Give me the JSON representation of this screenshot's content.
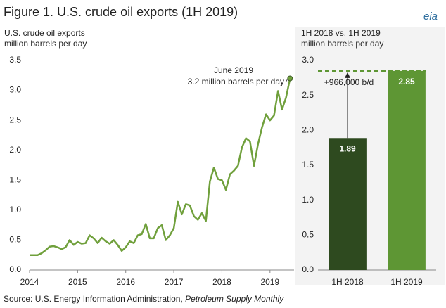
{
  "title": "Figure 1. U.S. crude oil exports (1H 2019)",
  "logo": "eia",
  "source": "Source: U.S. Energy Information Administration, ",
  "source_publication": "Petroleum Supply Monthly",
  "chart_data": [
    {
      "type": "line",
      "axis_label": [
        "U.S. crude oil exports",
        "million barrels per day"
      ],
      "annotation": [
        "June 2019",
        "3.2 million barrels per day"
      ],
      "x": [
        2014,
        2014.083,
        2014.167,
        2014.25,
        2014.333,
        2014.417,
        2014.5,
        2014.583,
        2014.667,
        2014.75,
        2014.833,
        2014.917,
        2015,
        2015.083,
        2015.167,
        2015.25,
        2015.333,
        2015.417,
        2015.5,
        2015.583,
        2015.667,
        2015.75,
        2015.833,
        2015.917,
        2016,
        2016.083,
        2016.167,
        2016.25,
        2016.333,
        2016.417,
        2016.5,
        2016.583,
        2016.667,
        2016.75,
        2016.833,
        2016.917,
        2017,
        2017.083,
        2017.167,
        2017.25,
        2017.333,
        2017.417,
        2017.5,
        2017.583,
        2017.667,
        2017.75,
        2017.833,
        2017.917,
        2018,
        2018.083,
        2018.167,
        2018.25,
        2018.333,
        2018.417,
        2018.5,
        2018.583,
        2018.667,
        2018.75,
        2018.833,
        2018.917,
        2019,
        2019.083,
        2019.167,
        2019.25,
        2019.333,
        2019.417
      ],
      "series": [
        {
          "name": "U.S. crude oil exports",
          "color": "#70a03c",
          "values": [
            0.25,
            0.25,
            0.25,
            0.28,
            0.33,
            0.39,
            0.4,
            0.38,
            0.35,
            0.38,
            0.5,
            0.42,
            0.47,
            0.44,
            0.45,
            0.58,
            0.53,
            0.45,
            0.54,
            0.48,
            0.44,
            0.5,
            0.42,
            0.32,
            0.38,
            0.48,
            0.45,
            0.58,
            0.6,
            0.77,
            0.53,
            0.53,
            0.7,
            0.75,
            0.5,
            0.58,
            0.7,
            1.14,
            0.93,
            1.1,
            1.08,
            0.9,
            0.84,
            0.95,
            0.82,
            1.48,
            1.71,
            1.52,
            1.5,
            1.34,
            1.6,
            1.66,
            1.74,
            2.05,
            2.2,
            2.15,
            1.74,
            2.1,
            2.38,
            2.6,
            2.5,
            2.58,
            2.99,
            2.68,
            2.88,
            3.2
          ]
        }
      ],
      "xlim": [
        2014,
        2019.5
      ],
      "xticks": [
        2014,
        2015,
        2016,
        2017,
        2018,
        2019
      ],
      "ylim": [
        0,
        3.5
      ],
      "yticks": [
        {
          "value": 0,
          "label": "0.0"
        },
        {
          "value": 0.5,
          "label": "0.5"
        },
        {
          "value": 1,
          "label": "1.0"
        },
        {
          "value": 1.5,
          "label": "1.5"
        },
        {
          "value": 2,
          "label": "2.0"
        },
        {
          "value": 2.5,
          "label": "2.5"
        },
        {
          "value": 3,
          "label": "3.0"
        },
        {
          "value": 3.5,
          "label": "3.5"
        }
      ]
    },
    {
      "type": "bar",
      "axis_label": [
        "1H 2018 vs. 1H 2019",
        "million barrels per day"
      ],
      "annotation": "+966,000 b/d",
      "categories": [
        "1H 2018",
        "1H 2019"
      ],
      "values": [
        1.89,
        2.85
      ],
      "colors": [
        "#2e4a1f",
        "#5e9634"
      ],
      "ylim": [
        0,
        3
      ],
      "yticks": [
        {
          "value": 0,
          "label": "0.0"
        },
        {
          "value": 0.5,
          "label": "0.5"
        },
        {
          "value": 1,
          "label": "1.0"
        },
        {
          "value": 1.5,
          "label": "1.5"
        },
        {
          "value": 2,
          "label": "2.0"
        },
        {
          "value": 2.5,
          "label": "2.5"
        },
        {
          "value": 3,
          "label": "3.0"
        }
      ]
    }
  ]
}
